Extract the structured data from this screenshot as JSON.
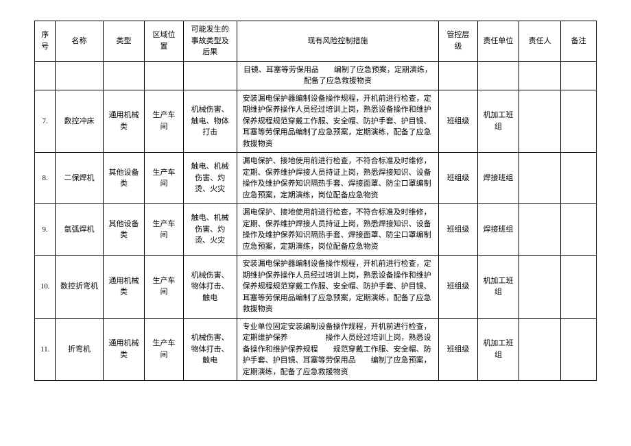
{
  "table": {
    "headers": {
      "seq": "序号",
      "name": "名称",
      "type": "类型",
      "area": "区域位置",
      "accident": "可能发生的事故类型及后果",
      "measures": "现有风险控制措施",
      "level": "管控层级",
      "unit": "责任单位",
      "person": "责任人",
      "remark": "备注"
    },
    "rows": [
      {
        "seq": "",
        "name": "",
        "type": "",
        "area": "",
        "accident": "",
        "measures": "目镜、耳塞等劳保用品　　编制了应急预案，定期演练，配备了应急救援物资",
        "level": "",
        "unit": "",
        "person": "",
        "remark": ""
      },
      {
        "seq": "7.",
        "name": "数控冲床",
        "type": "通用机械类",
        "area": "生产车间",
        "accident": "机械伤害、触电、物体打击",
        "measures": "安装漏电保护器编制设备操作规程，开机前进行检查，定期维护保养操作人员经过培训上岗，熟悉设备操作和维护保养规程规范穿戴工作服、安全帽、防护手套、护目镜、耳塞等劳保用品编制了应急预案，定期演练，配备了应急救援物资",
        "level": "班组级",
        "unit": "机加工班组",
        "person": "",
        "remark": ""
      },
      {
        "seq": "8.",
        "name": "二保焊机",
        "type": "其他设备类",
        "area": "生产车间",
        "accident": "触电、机械伤害、灼烫、火灾",
        "measures": "漏电保护、接地使用前进行检查，不符合标准及时维修，定期、保养维护焊接人员持证上岗，熟悉焊接知识、设备操作及维护保养知识隔热手套、焊接面罩、防尘口罩编制应急预案，定期演练，岗位配备应急物资",
        "level": "班组级",
        "unit": "焊接班组",
        "person": "",
        "remark": ""
      },
      {
        "seq": "9.",
        "name": "氩弧焊机",
        "type": "其他设备类",
        "area": "生产车间",
        "accident": "触电、机械伤害、灼烫、火灾",
        "measures": "漏电保护、接地使用前进行检查，不符合标准及时维修，定期、保养维护焊接人员持证上岗，熟悉焊接知识、设备操作及维护保养知识隔热手套、焊接面罩、防尘口罩编制应急预案，定期演练，岗位配备应急物资",
        "level": "班组级",
        "unit": "焊接班组",
        "person": "",
        "remark": ""
      },
      {
        "seq": "10.",
        "name": "数控折弯机",
        "type": "通用机械类",
        "area": "生产车间",
        "accident": "机械伤害、物体打击、触电",
        "measures": "安装漏电保护器编制设备操作规程，开机前进行检查，定期维护保养操作人员经过培训上岗，熟悉设备操作和维护保养规程规范穿戴工作服、安全帽、防护手套、护目镜、耳塞等劳保用品编制了应急预案，定期演练，配备了应急救援物资",
        "level": "班组级",
        "unit": "机加工班组",
        "person": "",
        "remark": ""
      },
      {
        "seq": "11.",
        "name": "折弯机",
        "type": "通用机械类",
        "area": "生产车间",
        "accident": "机械伤害、物体打击、触电",
        "measures": "专业单位固定安装编制设备操作规程，开机前进行检查，定期维护保养　　　　　操作人员经过培训上岗，熟悉设备操作和维护保养规程　　规范穿戴工作服、安全帽、防护手套、护目镜、耳塞等劳保用品　　编制了应急预案，定期演练，配备了应急救援物资",
        "level": "班组级",
        "unit": "机加工班组",
        "person": "",
        "remark": ""
      }
    ],
    "column_widths": {
      "seq": "3.5%",
      "name": "8%",
      "type": "7%",
      "area": "6.5%",
      "accident": "9%",
      "measures": "34%",
      "level": "6.5%",
      "unit": "7%",
      "person": "7%",
      "remark": "6%"
    },
    "styling": {
      "border_color": "#000000",
      "background_color": "#ffffff",
      "font_family": "SimSun",
      "font_size": 11,
      "line_height": 1.5,
      "text_align_measures": "left",
      "text_align_others": "center"
    }
  }
}
